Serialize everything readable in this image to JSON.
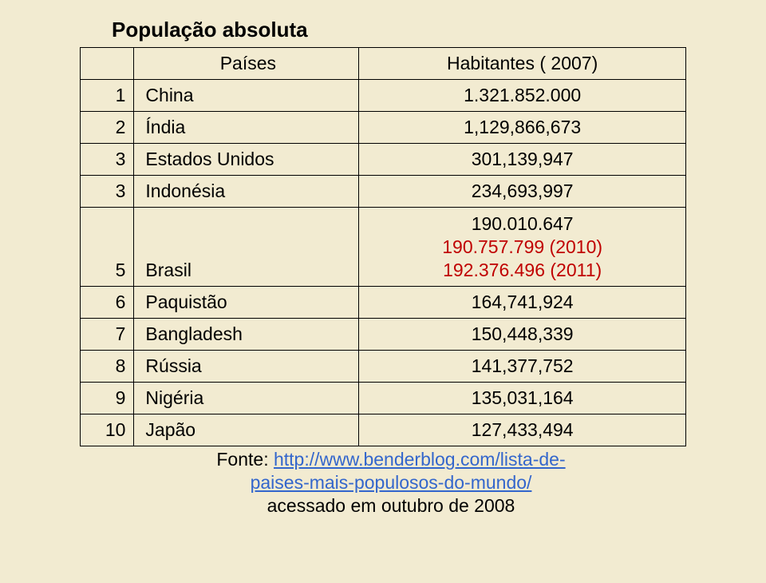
{
  "title": "População absoluta",
  "headers": {
    "countries": "Países",
    "habitants": "Habitantes ( 2007)"
  },
  "rows": {
    "r1": {
      "num": "1",
      "country": "China",
      "hab": "1.321.852.000"
    },
    "r2": {
      "num": "2",
      "country": "Índia",
      "hab": "1,129,866,673"
    },
    "r3": {
      "num": "3",
      "country": "Estados Unidos",
      "hab": "301,139,947"
    },
    "r4": {
      "num": "3",
      "country": "Indonésia",
      "hab": "234,693,997"
    },
    "r5": {
      "num": "5",
      "country": "Brasil",
      "line1": "190.010.647",
      "line2": "190.757.799 (2010)",
      "line3": "192.376.496 (2011)"
    },
    "r6": {
      "num": "6",
      "country": "Paquistão",
      "hab": "164,741,924"
    },
    "r7": {
      "num": "7",
      "country": "Bangladesh",
      "hab": "150,448,339"
    },
    "r8": {
      "num": "8",
      "country": "Rússia",
      "hab": "141,377,752"
    },
    "r9": {
      "num": "9",
      "country": "Nigéria",
      "hab": "135,031,164"
    },
    "r10": {
      "num": "10",
      "country": "Japão",
      "hab": "127,433,494"
    }
  },
  "footer": {
    "prefix": "Fonte: ",
    "link1": "http://www.benderblog.com/lista-de-",
    "link2": "paises-mais-populosos-do-mundo/",
    "suffix": "acessado em outubro de 2008"
  },
  "styles": {
    "background_color": "#f2ebd1",
    "border_color": "#000000",
    "text_color": "#000000",
    "red_color": "#c00000",
    "link_color": "#3366cc",
    "title_fontsize": 26,
    "cell_fontsize": 23
  }
}
